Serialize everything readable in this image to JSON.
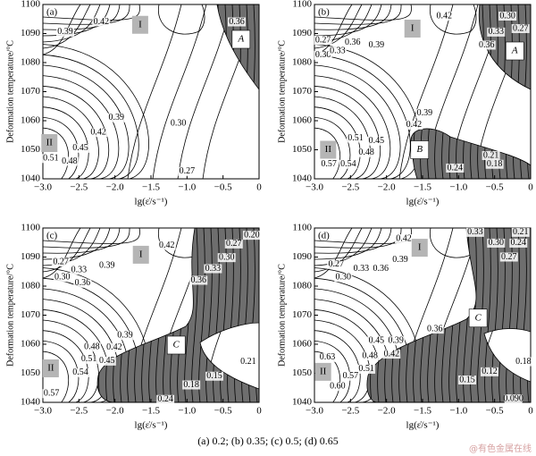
{
  "chart_data": [
    {
      "type": "contour",
      "title": "(a)",
      "xlabel": "lg(ε̇/s⁻¹)",
      "ylabel": "Deformation temperature/°C",
      "xlim": [
        -3,
        0
      ],
      "ylim": [
        1040,
        1100
      ],
      "xticks": [
        {
          "value": -3,
          "label": "−3.0"
        },
        {
          "value": -2.5,
          "label": "−2.5"
        },
        {
          "value": -2,
          "label": "−2.0"
        },
        {
          "value": -1.5,
          "label": "−1.5"
        },
        {
          "value": -1,
          "label": "−1.0"
        },
        {
          "value": -0.5,
          "label": "−0.5"
        },
        0
      ],
      "yticks": [
        1040,
        1050,
        1060,
        1070,
        1080,
        1090,
        1100
      ],
      "contour_labels": [
        {
          "x": -2.69,
          "y": 1090.5,
          "value": 0.39,
          "label": "0.39"
        },
        {
          "x": -2.19,
          "y": 1094,
          "value": 0.42,
          "label": "0.42"
        },
        {
          "x": -0.31,
          "y": 1094,
          "value": 0.36,
          "label": "0.36"
        },
        {
          "x": -1.98,
          "y": 1061,
          "value": 0.39,
          "label": "0.39"
        },
        {
          "x": -2.23,
          "y": 1056,
          "value": 0.42,
          "label": "0.42"
        },
        {
          "x": -1.12,
          "y": 1059,
          "value": 0.3,
          "label": "0.30"
        },
        {
          "x": -2.48,
          "y": 1050.5,
          "value": 0.45,
          "label": "0.45"
        },
        {
          "x": -2.89,
          "y": 1047,
          "value": 0.51,
          "label": "0.51"
        },
        {
          "x": -2.63,
          "y": 1046,
          "value": 0.48,
          "label": "0.48"
        },
        {
          "x": -1.0,
          "y": 1042.5,
          "value": 0.27,
          "label": "0.27"
        }
      ],
      "regions": [
        {
          "label": "I",
          "x": -1.65,
          "y": 1093
        },
        {
          "label": "A",
          "x": -0.25,
          "y": 1088
        },
        {
          "label": "II",
          "x": -2.91,
          "y": 1052.3
        }
      ]
    },
    {
      "type": "contour",
      "title": "(b)",
      "xlabel": "lg(ε̇/s⁻¹)",
      "ylabel": "Deformation temperature/°C",
      "xlim": [
        -3,
        0
      ],
      "ylim": [
        1040,
        1100
      ],
      "xticks": [
        {
          "value": -3,
          "label": "−3.0"
        },
        {
          "value": -2.5,
          "label": "−2.5"
        },
        {
          "value": -2,
          "label": "−2.0"
        },
        {
          "value": -1.5,
          "label": "−1.5"
        },
        {
          "value": -1,
          "label": "−1.0"
        },
        {
          "value": -0.5,
          "label": "−0.5"
        },
        0
      ],
      "yticks": [
        1040,
        1050,
        1060,
        1070,
        1080,
        1090,
        1100
      ],
      "contour_labels": [
        {
          "x": -1.2,
          "y": 1096,
          "value": 0.42,
          "label": "0.42"
        },
        {
          "x": -0.32,
          "y": 1096,
          "value": 0.3,
          "label": "0.30"
        },
        {
          "x": -0.14,
          "y": 1091.7,
          "value": 0.27,
          "label": "0.27"
        },
        {
          "x": -0.48,
          "y": 1090.5,
          "value": 0.33,
          "label": "0.33"
        },
        {
          "x": -0.61,
          "y": 1086,
          "value": 0.36,
          "label": "0.36"
        },
        {
          "x": -2.88,
          "y": 1087.7,
          "value": 0.27,
          "label": "0.27"
        },
        {
          "x": -2.88,
          "y": 1082.5,
          "value": 0.3,
          "label": "0.30"
        },
        {
          "x": -2.68,
          "y": 1084,
          "value": 0.33,
          "label": "0.33"
        },
        {
          "x": -2.47,
          "y": 1086.8,
          "value": 0.36,
          "label": "0.36"
        },
        {
          "x": -2.14,
          "y": 1086,
          "value": 0.39,
          "label": "0.39"
        },
        {
          "x": -1.47,
          "y": 1062.5,
          "value": 0.39,
          "label": "0.39"
        },
        {
          "x": -1.62,
          "y": 1058.5,
          "value": 0.42,
          "label": "0.42"
        },
        {
          "x": -2.43,
          "y": 1054,
          "value": 0.51,
          "label": "0.51"
        },
        {
          "x": -2.14,
          "y": 1053,
          "value": 0.45,
          "label": "0.45"
        },
        {
          "x": -2.28,
          "y": 1049,
          "value": 0.48,
          "label": "0.48"
        },
        {
          "x": -2.8,
          "y": 1045,
          "value": 0.57,
          "label": "0.57"
        },
        {
          "x": -2.53,
          "y": 1045,
          "value": 0.54,
          "label": "0.54"
        },
        {
          "x": -0.55,
          "y": 1048,
          "value": 0.21,
          "label": "0.21"
        },
        {
          "x": -1.05,
          "y": 1043.7,
          "value": 0.24,
          "label": "0.24"
        },
        {
          "x": -0.5,
          "y": 1045,
          "value": 0.18,
          "label": "0.18"
        }
      ],
      "regions": [
        {
          "label": "I",
          "x": -1.64,
          "y": 1091.7
        },
        {
          "label": "A",
          "x": -0.22,
          "y": 1084
        },
        {
          "label": "II",
          "x": -2.81,
          "y": 1050
        },
        {
          "label": "B",
          "x": -1.54,
          "y": 1050
        }
      ]
    },
    {
      "type": "contour",
      "title": "(c)",
      "xlabel": "lg(ε̇/s⁻¹)",
      "ylabel": "Deformation temperature/°C",
      "xlim": [
        -3,
        0
      ],
      "ylim": [
        1040,
        1100
      ],
      "xticks": [
        {
          "value": -3,
          "label": "−3.0"
        },
        {
          "value": -2.5,
          "label": "−2.5"
        },
        {
          "value": -2,
          "label": "−2.0"
        },
        {
          "value": -1.5,
          "label": "−1.5"
        },
        {
          "value": -1,
          "label": "−1.0"
        },
        {
          "value": -0.5,
          "label": "−0.5"
        },
        0
      ],
      "yticks": [
        1040,
        1050,
        1060,
        1070,
        1080,
        1090,
        1100
      ],
      "contour_labels": [
        {
          "x": -1.28,
          "y": 1094,
          "value": 0.42,
          "label": "0.42"
        },
        {
          "x": -2.75,
          "y": 1088.3,
          "value": 0.27,
          "label": "0.27"
        },
        {
          "x": -2.73,
          "y": 1083,
          "value": 0.3,
          "label": "0.30"
        },
        {
          "x": -2.5,
          "y": 1085.5,
          "value": 0.33,
          "label": "0.33"
        },
        {
          "x": -2.45,
          "y": 1081,
          "value": 0.36,
          "label": "0.36"
        },
        {
          "x": -2.11,
          "y": 1087,
          "value": 0.39,
          "label": "0.39"
        },
        {
          "x": -0.35,
          "y": 1094.5,
          "value": 0.27,
          "label": "0.27"
        },
        {
          "x": -0.1,
          "y": 1097.5,
          "value": 0.2,
          "label": "0.20"
        },
        {
          "x": -0.45,
          "y": 1089.8,
          "value": 0.3,
          "label": "0.30"
        },
        {
          "x": -0.64,
          "y": 1086,
          "value": 0.33,
          "label": "0.33"
        },
        {
          "x": -0.84,
          "y": 1082,
          "value": 0.36,
          "label": "0.36"
        },
        {
          "x": -1.86,
          "y": 1063,
          "value": 0.39,
          "label": "0.39"
        },
        {
          "x": -2.32,
          "y": 1059,
          "value": 0.48,
          "label": "0.48"
        },
        {
          "x": -2.01,
          "y": 1058.8,
          "value": 0.42,
          "label": "0.42"
        },
        {
          "x": -2.36,
          "y": 1054.8,
          "value": 0.51,
          "label": "0.51"
        },
        {
          "x": -2.11,
          "y": 1054.2,
          "value": 0.45,
          "label": "0.45"
        },
        {
          "x": -2.48,
          "y": 1050.2,
          "value": 0.54,
          "label": "0.54"
        },
        {
          "x": -2.88,
          "y": 1043,
          "value": 0.57,
          "label": "0.57"
        },
        {
          "x": -0.15,
          "y": 1054,
          "value": 0.21,
          "label": "0.21"
        },
        {
          "x": -0.62,
          "y": 1049,
          "value": 0.15,
          "label": "0.15"
        },
        {
          "x": -0.94,
          "y": 1046,
          "value": 0.18,
          "label": "0.18"
        },
        {
          "x": -1.3,
          "y": 1041,
          "value": 0.24,
          "label": "0.24"
        }
      ],
      "regions": [
        {
          "label": "I",
          "x": -1.64,
          "y": 1090.8
        },
        {
          "label": "C",
          "x": -1.15,
          "y": 1059.7
        },
        {
          "label": "II",
          "x": -2.89,
          "y": 1051.7
        }
      ]
    },
    {
      "type": "contour",
      "title": "(d)",
      "xlabel": "lg(ε̇/s⁻¹)",
      "ylabel": "Deformation temperature/°C",
      "xlim": [
        -3,
        0
      ],
      "ylim": [
        1040,
        1100
      ],
      "xticks": [
        {
          "value": -3,
          "label": "−3.0"
        },
        {
          "value": -2.5,
          "label": "−2.5"
        },
        {
          "value": -2,
          "label": "−2.0"
        },
        {
          "value": -1.5,
          "label": "−1.5"
        },
        {
          "value": -1,
          "label": "−1.0"
        },
        {
          "value": -0.5,
          "label": "−0.5"
        },
        0
      ],
      "yticks": [
        1040,
        1050,
        1060,
        1070,
        1080,
        1090,
        1100
      ],
      "contour_labels": [
        {
          "x": -1.76,
          "y": 1096.3,
          "value": 0.42,
          "label": "0.42"
        },
        {
          "x": -0.77,
          "y": 1098.5,
          "value": 0.33,
          "label": "0.33"
        },
        {
          "x": -0.14,
          "y": 1098.5,
          "value": 0.21,
          "label": "0.21"
        },
        {
          "x": -0.17,
          "y": 1094.8,
          "value": 0.24,
          "label": "0.24"
        },
        {
          "x": -0.48,
          "y": 1094.8,
          "value": 0.3,
          "label": "0.30"
        },
        {
          "x": -0.3,
          "y": 1090,
          "value": 0.27,
          "label": "0.27"
        },
        {
          "x": -2.7,
          "y": 1087.4,
          "value": 0.27,
          "label": "0.27"
        },
        {
          "x": -2.6,
          "y": 1083,
          "value": 0.3,
          "label": "0.30"
        },
        {
          "x": -2.35,
          "y": 1086,
          "value": 0.33,
          "label": "0.33"
        },
        {
          "x": -2.08,
          "y": 1086,
          "value": 0.36,
          "label": "0.36"
        },
        {
          "x": -1.81,
          "y": 1089,
          "value": 0.39,
          "label": "0.39"
        },
        {
          "x": -1.33,
          "y": 1065.2,
          "value": 0.36,
          "label": "0.36"
        },
        {
          "x": -2.14,
          "y": 1061.2,
          "value": 0.45,
          "label": "0.45"
        },
        {
          "x": -1.87,
          "y": 1061.2,
          "value": 0.39,
          "label": "0.39"
        },
        {
          "x": -2.23,
          "y": 1056,
          "value": 0.48,
          "label": "0.48"
        },
        {
          "x": -1.93,
          "y": 1056.6,
          "value": 0.42,
          "label": "0.42"
        },
        {
          "x": -2.28,
          "y": 1051.4,
          "value": 0.51,
          "label": "0.51"
        },
        {
          "x": -2.5,
          "y": 1049,
          "value": 0.57,
          "label": "0.57"
        },
        {
          "x": -2.82,
          "y": 1055.4,
          "value": 0.63,
          "label": "0.63"
        },
        {
          "x": -2.68,
          "y": 1045.5,
          "value": 0.6,
          "label": "0.60"
        },
        {
          "x": -0.1,
          "y": 1054,
          "value": 0.18,
          "label": "0.18"
        },
        {
          "x": -0.57,
          "y": 1050.5,
          "value": 0.12,
          "label": "0.12"
        },
        {
          "x": -0.88,
          "y": 1047.7,
          "value": 0.15,
          "label": "0.15"
        },
        {
          "x": -0.24,
          "y": 1041.2,
          "value": 0.09,
          "label": "0.090"
        }
      ],
      "regions": [
        {
          "label": "I",
          "x": -1.54,
          "y": 1093.2
        },
        {
          "label": "C",
          "x": -0.73,
          "y": 1069
        },
        {
          "label": "II",
          "x": -2.88,
          "y": 1050.5
        }
      ]
    }
  ],
  "caption": "(a) 0.2; (b) 0.35; (c) 0.5; (d) 0.65",
  "watermark": "@有色金属在线"
}
